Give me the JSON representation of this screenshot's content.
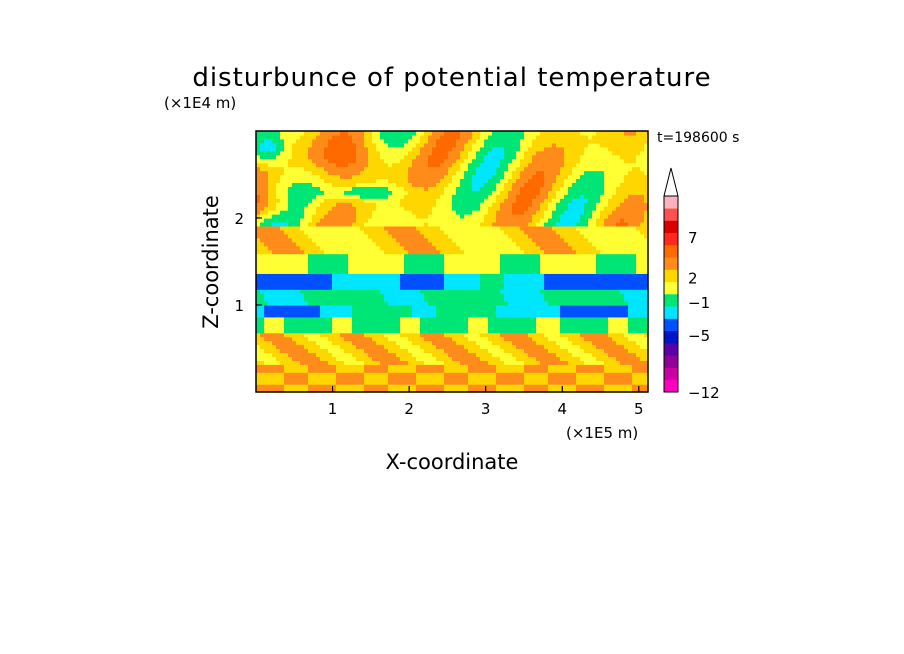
{
  "chart_data": {
    "type": "heatmap",
    "title": "disturbunce of potential temperature",
    "xlabel": "X-coordinate",
    "ylabel": "Z-coordinate",
    "x_unit": "(×1E5 m)",
    "y_unit": "(×1E4 m)",
    "time_label": "t=198600 s",
    "xlim": [
      0,
      5.12
    ],
    "ylim": [
      0,
      3.0
    ],
    "x_ticks": [
      1,
      2,
      3,
      4,
      5
    ],
    "y_ticks": [
      1,
      2
    ],
    "x_tick_labels": [
      "1",
      "2",
      "3",
      "4",
      "5"
    ],
    "y_tick_labels": [
      "1",
      "2"
    ],
    "colorbar": {
      "colors": [
        "#ff00c0",
        "#cc00a0",
        "#8e0096",
        "#5a00a8",
        "#0014c8",
        "#0050ff",
        "#00e6ff",
        "#00e676",
        "#ffff33",
        "#ffd700",
        "#ff8c1a",
        "#ff6a00",
        "#ff2a1a",
        "#dd0000",
        "#ff5050",
        "#ffb0c0"
      ],
      "labels": [
        {
          "text": "−12",
          "level": -12
        },
        {
          "text": "−5",
          "level": -5
        },
        {
          "text": "−1",
          "level": -1
        },
        {
          "text": "2",
          "level": 2
        },
        {
          "text": "7",
          "level": 7
        }
      ],
      "vmin": -12,
      "vmax": 12
    }
  }
}
